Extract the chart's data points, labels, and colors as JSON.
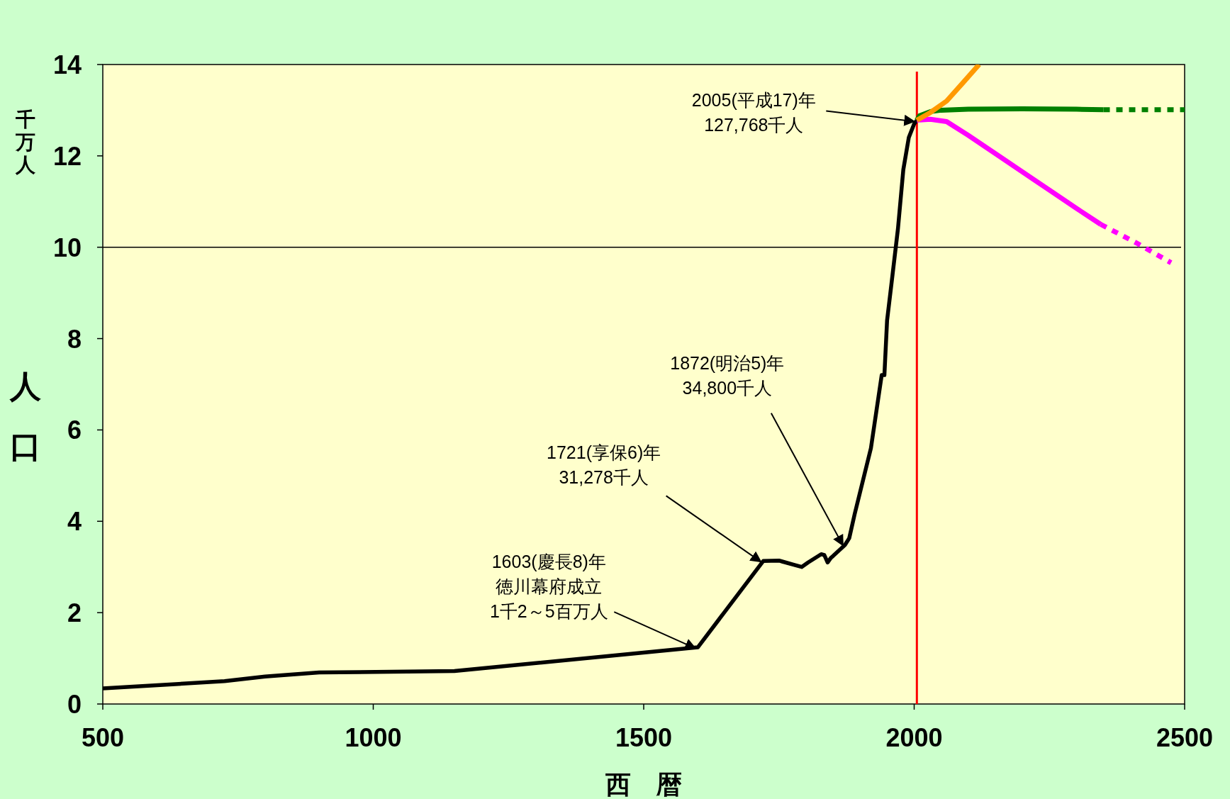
{
  "chart_data": {
    "type": "line",
    "xlabel": "西　暦",
    "ylabel": "人口",
    "xlim": [
      500,
      2500
    ],
    "xticks": [
      500,
      1000,
      1500,
      2000,
      2500
    ],
    "ylim": [
      0,
      14
    ],
    "yticks": [
      0,
      2,
      4,
      6,
      8,
      10,
      12,
      14
    ],
    "grid": false,
    "ref_lines": [
      {
        "axis": "y",
        "value": 10,
        "color": "#000000"
      },
      {
        "axis": "x",
        "value": 2005,
        "color": "#ff0000"
      }
    ],
    "series": [
      {
        "color": "#000000",
        "line_style": "solid",
        "x": [
          500,
          725,
          800,
          900,
          1150,
          1600,
          1721,
          1750,
          1756,
          1780,
          1792,
          1804,
          1828,
          1834,
          1840,
          1846,
          1850,
          1872,
          1880,
          1890,
          1920,
          1930,
          1940,
          1945,
          1950,
          1960,
          1970,
          1980,
          1990,
          2000,
          2005
        ],
        "values": [
          0.34,
          0.5,
          0.6,
          0.69,
          0.72,
          1.24,
          3.13,
          3.14,
          3.12,
          3.04,
          3.0,
          3.1,
          3.28,
          3.26,
          3.1,
          3.2,
          3.24,
          3.48,
          3.63,
          4.16,
          5.6,
          6.4,
          7.2,
          7.2,
          8.4,
          9.4,
          10.4,
          11.7,
          12.4,
          12.7,
          12.78
        ]
      },
      {
        "color": "#008000",
        "line_style": "solid",
        "x": [
          2005,
          2010,
          2030,
          2050,
          2100,
          2200,
          2300,
          2350
        ],
        "values": [
          12.78,
          12.88,
          12.97,
          13.0,
          13.02,
          13.03,
          13.02,
          13.01
        ]
      },
      {
        "color": "#008000",
        "line_style": "dotted",
        "x": [
          2350,
          2500
        ],
        "values": [
          13.01,
          13.01
        ]
      },
      {
        "color": "#ff00ff",
        "line_style": "solid",
        "x": [
          2005,
          2030,
          2060,
          2100,
          2150,
          2200,
          2250,
          2300,
          2345
        ],
        "values": [
          12.78,
          12.8,
          12.75,
          12.45,
          12.05,
          11.65,
          11.25,
          10.85,
          10.5
        ]
      },
      {
        "color": "#ff00ff",
        "line_style": "dotted",
        "x": [
          2345,
          2410,
          2475
        ],
        "values": [
          10.5,
          10.1,
          9.66
        ]
      },
      {
        "color": "#ff9900",
        "line_style": "solid",
        "x": [
          2005,
          2030,
          2060,
          2090,
          2120
        ],
        "values": [
          12.78,
          12.95,
          13.2,
          13.6,
          14.0
        ]
      }
    ],
    "annotations": [
      "千万人",
      {
        "text": "2005(平成17)年\n127,768千人",
        "x": 2005,
        "y": 12.78
      },
      {
        "text": "1872(明治5)年\n34,800千人",
        "x": 1872,
        "y": 3.48
      },
      {
        "text": "1721(享保6)年\n31,278千人",
        "x": 1721,
        "y": 3.13
      },
      "1603(慶長8)年",
      "徳川幕府成立",
      {
        "text": "1千2～5百万人",
        "x": 1600,
        "y": 1.24
      }
    ]
  }
}
